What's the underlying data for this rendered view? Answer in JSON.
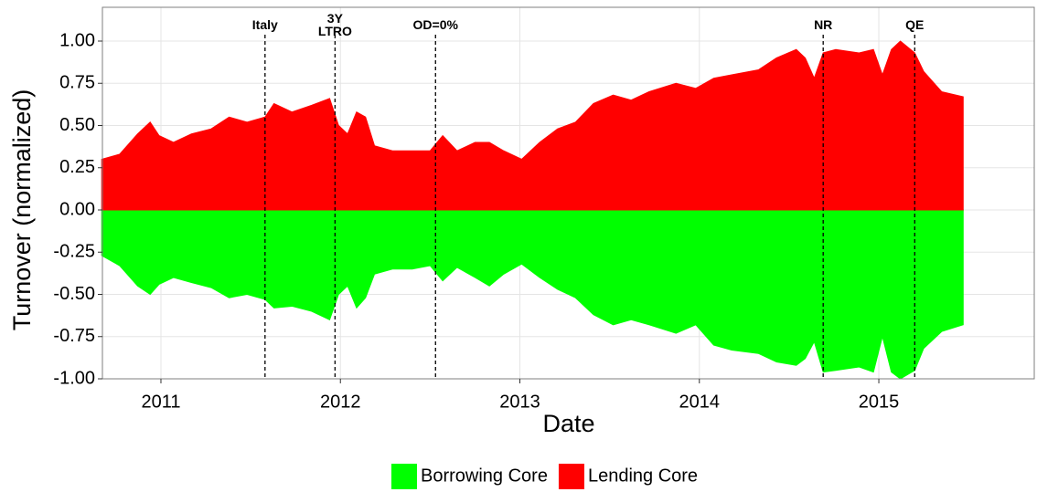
{
  "chart_data": {
    "type": "area",
    "x_label": "Date",
    "y_label": "Turnover (normalized)",
    "x": [
      2010.67,
      2010.77,
      2010.87,
      2010.94,
      2010.99,
      2011.07,
      2011.17,
      2011.28,
      2011.38,
      2011.48,
      2011.58,
      2011.63,
      2011.73,
      2011.84,
      2011.94,
      2011.99,
      2012.04,
      2012.09,
      2012.14,
      2012.19,
      2012.29,
      2012.4,
      2012.5,
      2012.57,
      2012.65,
      2012.75,
      2012.83,
      2012.91,
      2013.01,
      2013.11,
      2013.21,
      2013.31,
      2013.41,
      2013.52,
      2013.62,
      2013.72,
      2013.87,
      2013.98,
      2014.08,
      2014.18,
      2014.33,
      2014.43,
      2014.54,
      2014.59,
      2014.64,
      2014.69,
      2014.76,
      2014.89,
      2014.97,
      2015.02,
      2015.07,
      2015.12,
      2015.2,
      2015.25,
      2015.35,
      2015.47
    ],
    "series": [
      {
        "name": "Borrowing Core",
        "color": "#00ff00",
        "values": [
          -0.27,
          -0.33,
          -0.45,
          -0.5,
          -0.44,
          -0.4,
          -0.43,
          -0.46,
          -0.52,
          -0.5,
          -0.53,
          -0.58,
          -0.57,
          -0.6,
          -0.65,
          -0.5,
          -0.45,
          -0.58,
          -0.52,
          -0.38,
          -0.35,
          -0.35,
          -0.33,
          -0.42,
          -0.34,
          -0.4,
          -0.45,
          -0.38,
          -0.32,
          -0.4,
          -0.47,
          -0.52,
          -0.62,
          -0.68,
          -0.65,
          -0.68,
          -0.73,
          -0.68,
          -0.8,
          -0.83,
          -0.85,
          -0.9,
          -0.92,
          -0.88,
          -0.78,
          -0.96,
          -0.95,
          -0.93,
          -0.96,
          -0.75,
          -0.96,
          -1.0,
          -0.95,
          -0.82,
          -0.72,
          -0.68
        ]
      },
      {
        "name": "Lending Core",
        "color": "#ff0000",
        "values": [
          0.3,
          0.33,
          0.45,
          0.52,
          0.44,
          0.4,
          0.45,
          0.48,
          0.55,
          0.52,
          0.55,
          0.63,
          0.58,
          0.62,
          0.66,
          0.5,
          0.45,
          0.58,
          0.55,
          0.38,
          0.35,
          0.35,
          0.35,
          0.44,
          0.35,
          0.4,
          0.4,
          0.35,
          0.3,
          0.4,
          0.48,
          0.52,
          0.63,
          0.68,
          0.65,
          0.7,
          0.75,
          0.72,
          0.78,
          0.8,
          0.83,
          0.9,
          0.95,
          0.9,
          0.78,
          0.93,
          0.95,
          0.93,
          0.95,
          0.8,
          0.95,
          1.0,
          0.93,
          0.82,
          0.7,
          0.67
        ]
      }
    ],
    "annotations": [
      {
        "label": "Italy",
        "x": 2011.58
      },
      {
        "label": "3Y\nLTRO",
        "x": 2011.97
      },
      {
        "label": "OD=0%",
        "x": 2012.53
      },
      {
        "label": "NR",
        "x": 2014.69
      },
      {
        "label": "QE",
        "x": 2015.2
      }
    ],
    "xlim": [
      2010.674,
      2015.866
    ],
    "xticks": [
      2011,
      2012,
      2013,
      2014,
      2015
    ],
    "ylim": [
      -1,
      1.2
    ],
    "yticks": [
      {
        "value": -1,
        "label": "-1.00"
      },
      {
        "value": -0.75,
        "label": "-0.75"
      },
      {
        "value": -0.5,
        "label": "-0.50"
      },
      {
        "value": -0.25,
        "label": "-0.25"
      },
      {
        "value": 0,
        "label": "0.00"
      },
      {
        "value": 0.25,
        "label": "0.25"
      },
      {
        "value": 0.5,
        "label": "0.50"
      },
      {
        "value": 0.75,
        "label": "0.75"
      },
      {
        "value": 1,
        "label": "1.00"
      }
    ],
    "grid": true,
    "legend": "bottom"
  }
}
